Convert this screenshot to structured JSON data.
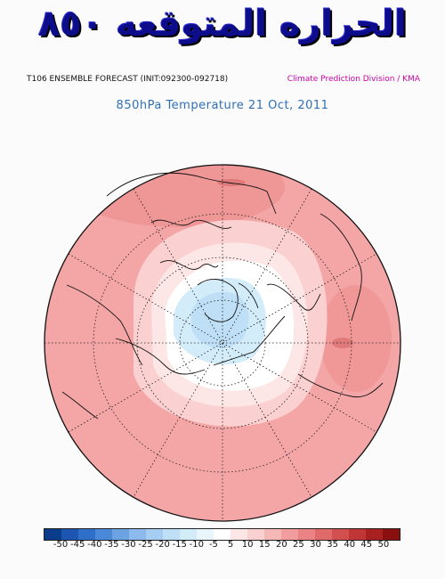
{
  "header": {
    "banner_title": "الحراره المتوقعه ٨٥٠",
    "model_run": "T106 ENSEMBLE FORECAST (INIT:092300-092718)",
    "source": "Climate Prediction Division / KMA"
  },
  "map": {
    "title": "850hPa Temperature 21 Oct, 2011",
    "projection": "north polar stereographic",
    "variable": "850hPa temperature anomaly"
  },
  "legend": {
    "tick_labels": [
      "-50",
      "-45",
      "-40",
      "-35",
      "-30",
      "-25",
      "-20",
      "-15",
      "-10",
      "-5",
      "5",
      "10",
      "15",
      "20",
      "25",
      "30",
      "35",
      "40",
      "45",
      "50"
    ],
    "colors": [
      "#0a3c8c",
      "#1c56b0",
      "#2e6fc8",
      "#4a88d8",
      "#6aa2e2",
      "#8cbaec",
      "#a6cef2",
      "#bedff6",
      "#d3ecf9",
      "#e8f6fc",
      "#ffffff",
      "#fde6e6",
      "#fbd0d0",
      "#f6b7b7",
      "#f19d9d",
      "#ea8484",
      "#e06a6a",
      "#d24f4f",
      "#c03636",
      "#a82020",
      "#8a1010"
    ]
  }
}
